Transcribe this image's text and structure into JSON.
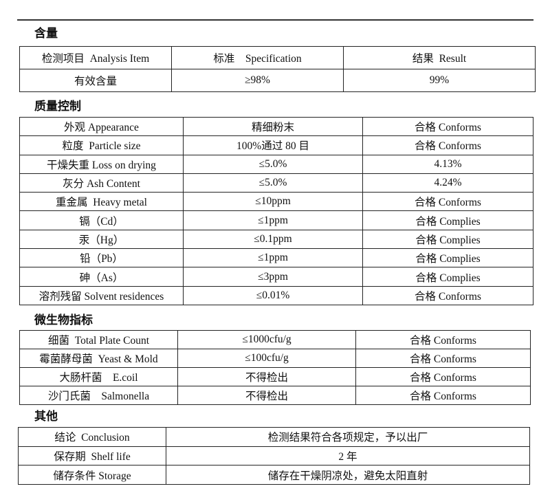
{
  "sections": [
    {
      "title": "含量",
      "rows": [
        [
          "检测项目  Analysis Item",
          "标准    Specification",
          "结果  Result"
        ],
        [
          "有效含量",
          "≥98%",
          "99%"
        ]
      ]
    },
    {
      "title": "质量控制",
      "rows": [
        [
          "外观 Appearance",
          "精细粉末",
          "合格 Conforms"
        ],
        [
          "粒度  Particle size",
          "100%通过 80 目",
          "合格 Conforms"
        ],
        [
          "干燥失重 Loss on drying",
          "≤5.0%",
          "4.13%"
        ],
        [
          "灰分 Ash Content",
          "≤5.0%",
          "4.24%"
        ],
        [
          "重金属  Heavy metal",
          "≤10ppm",
          "合格 Conforms"
        ],
        [
          "镉（Cd）",
          "≤1ppm",
          "合格 Complies"
        ],
        [
          "汞（Hg）",
          "≤0.1ppm",
          "合格 Complies"
        ],
        [
          "铅（Pb）",
          "≤1ppm",
          "合格 Complies"
        ],
        [
          "砷（As）",
          "≤3ppm",
          "合格 Complies"
        ],
        [
          "溶剂残留 Solvent residences",
          "≤0.01%",
          "合格 Conforms"
        ]
      ]
    },
    {
      "title": "微生物指标",
      "rows": [
        [
          "细菌  Total Plate Count",
          "≤1000cfu/g",
          "合格 Conforms"
        ],
        [
          "霉菌酵母菌  Yeast & Mold",
          "≤100cfu/g",
          "合格 Conforms"
        ],
        [
          "大肠杆菌    E.coil",
          "不得检出",
          "合格 Conforms"
        ],
        [
          "沙门氏菌    Salmonella",
          "不得检出",
          "合格 Conforms"
        ]
      ]
    },
    {
      "title": "其他",
      "rows": [
        [
          "结论  Conclusion",
          "检测结果符合各项规定，予以出厂"
        ],
        [
          "保存期  Shelf life",
          "2 年"
        ],
        [
          "储存条件 Storage",
          "储存在干燥阴凉处，避免太阳直射"
        ]
      ]
    }
  ]
}
